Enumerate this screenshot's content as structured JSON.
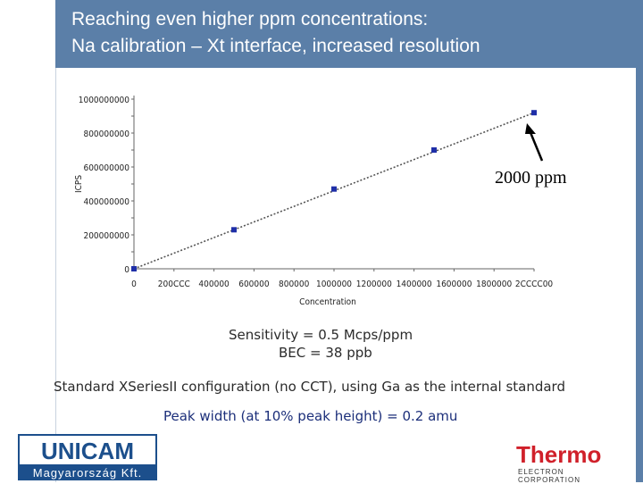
{
  "title": {
    "line1": "Reaching even higher ppm concentrations:",
    "line2": "Na  calibration – Xt interface, increased resolution"
  },
  "annotation": "2000 ppm",
  "notes": {
    "sensitivity": "Sensitivity = 0.5 Mcps/ppm",
    "bec": "BEC = 38 ppb",
    "config": "Standard XSeriesII configuration (no CCT), using Ga as the internal standard",
    "peak_width": "Peak width (at 10% peak height) = 0.2 amu"
  },
  "logos": {
    "unicam": "UNICAM",
    "unicam_sub": "Magyarország Kft.",
    "thermo": "Thermo",
    "thermo_sub": "ELECTRON CORPORATION"
  },
  "colors": {
    "title_band": "#5b7fa8",
    "points": "#1f2fa8",
    "line": "#555555",
    "unicam_blue": "#1c4f8c",
    "thermo_red": "#d0202a"
  },
  "chart_data": {
    "type": "scatter",
    "xlabel": "Concentration",
    "ylabel": "ICPS",
    "xlim": [
      0,
      2000000
    ],
    "ylim": [
      0,
      1000000000
    ],
    "x_ticks": [
      "0",
      "200CCC",
      "400000",
      "600000",
      "800000",
      "1000000",
      "1200000",
      "1400000",
      "1600000",
      "1800000",
      "2CCCC00"
    ],
    "y_ticks": [
      "0",
      "200000000",
      "400000000",
      "600000000",
      "800000000",
      "1000000000"
    ],
    "series": [
      {
        "x": [
          0,
          500000,
          1000000,
          1500000,
          2000000
        ],
        "y": [
          0,
          230000000,
          470000000,
          700000000,
          920000000
        ]
      }
    ],
    "fit_line": {
      "x": [
        0,
        2000000
      ],
      "y": [
        0,
        920000000
      ]
    },
    "grid": false,
    "legend": "none"
  }
}
